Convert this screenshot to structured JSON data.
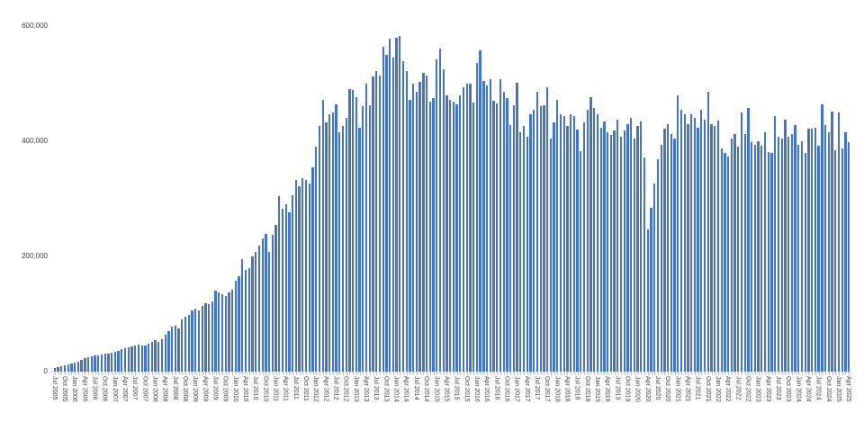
{
  "chart_data": {
    "type": "bar",
    "title": "",
    "frequency": "monthly",
    "start_month": "Jul 2005",
    "end_month": "Apr 2025",
    "bar_color": "#4472C4",
    "axis_text_color": "#404040",
    "axis_line_color": "#d9d9d9",
    "grid": false,
    "legend": "none",
    "y_axis": {
      "min": 0,
      "max": 600000,
      "tick_values": [
        0,
        200000,
        400000,
        600000
      ],
      "tick_labels": [
        "0",
        "200,000",
        "400,000",
        "600,000"
      ]
    },
    "x_axis": {
      "label_every_n_months": 3,
      "tick_labels": [
        "Jul 2005",
        "Oct 2005",
        "Jan 2006",
        "Apr 2006",
        "Jul 2006",
        "Oct 2006",
        "Jan 2007",
        "Apr 2007",
        "Jul 2007",
        "Oct 2007",
        "Jan 2008",
        "Apr 2008",
        "Jul 2008",
        "Oct 2008",
        "Jan 2009",
        "Apr 2009",
        "Jul 2009",
        "Oct 2009",
        "Jan 2010",
        "Apr 2010",
        "Jul 2010",
        "Oct 2010",
        "Jan 2011",
        "Apr 2011",
        "Jul 2011",
        "Oct 2011",
        "Jan 2012",
        "Apr 2012",
        "Jul 2012",
        "Oct 2012",
        "Jan 2013",
        "Apr 2013",
        "Jul 2013",
        "Oct 2013",
        "Jan 2014",
        "Apr 2014",
        "Jul 2014",
        "Oct 2014",
        "Jan 2015",
        "Apr 2015",
        "Jul 2015",
        "Oct 2015",
        "Jan 2016",
        "Apr 2016",
        "Jul 2016",
        "Oct 2016",
        "Jan 2017",
        "Apr 2017",
        "Jul 2017",
        "Oct 2017",
        "Jan 2018",
        "Apr 2018",
        "Jul 2018",
        "Oct 2018",
        "Jan 2019",
        "Apr 2019",
        "Jul 2019",
        "Oct 2019",
        "Jan 2020",
        "Apr 2020",
        "Jul 2020",
        "Oct 2020",
        "Jan 2021",
        "Apr 2021",
        "Jul 2021",
        "Oct 2021",
        "Jan 2022",
        "Apr 2022",
        "Jul 2022",
        "Oct 2022",
        "Jan 2023",
        "Apr 2023",
        "Jul 2023",
        "Oct 2023",
        "Jan 2024",
        "Apr 2024",
        "Jul 2024",
        "Oct 2024",
        "Jan 2025",
        "Apr 2025"
      ]
    },
    "values": [
      6000,
      8000,
      9000,
      11000,
      12000,
      14000,
      16000,
      17000,
      21000,
      23000,
      25000,
      27000,
      28000,
      28000,
      30000,
      31000,
      32000,
      33000,
      35000,
      36000,
      39000,
      41000,
      42000,
      44000,
      46000,
      47000,
      45000,
      46000,
      49000,
      51000,
      54000,
      52000,
      57000,
      64000,
      70000,
      78000,
      79000,
      75000,
      90000,
      95000,
      98000,
      106000,
      110000,
      106000,
      114000,
      119000,
      117000,
      122000,
      140000,
      137000,
      134000,
      132000,
      137000,
      142000,
      158000,
      166000,
      195000,
      176000,
      179000,
      200000,
      207000,
      218000,
      231000,
      239000,
      207000,
      238000,
      254000,
      304000,
      283000,
      290000,
      277000,
      306000,
      332000,
      321000,
      335000,
      332000,
      327000,
      355000,
      391000,
      426000,
      472000,
      433000,
      446000,
      449000,
      464000,
      415000,
      426000,
      441000,
      491000,
      488000,
      477000,
      423000,
      460000,
      499000,
      462000,
      512000,
      522000,
      514000,
      563000,
      550000,
      577000,
      545000,
      579000,
      582000,
      539000,
      522000,
      472000,
      499000,
      485000,
      503000,
      519000,
      514000,
      469000,
      475000,
      542000,
      561000,
      524000,
      480000,
      472000,
      469000,
      464000,
      480000,
      493000,
      500000,
      499000,
      467000,
      535000,
      558000,
      505000,
      497000,
      508000,
      470000,
      466000,
      508000,
      485000,
      475000,
      428000,
      462000,
      501000,
      415000,
      426000,
      407000,
      446000,
      454000,
      485000,
      460000,
      462000,
      493000,
      405000,
      433000,
      472000,
      446000,
      444000,
      426000,
      446000,
      444000,
      420000,
      382000,
      433000,
      455000,
      477000,
      457000,
      446000,
      423000,
      434000,
      415000,
      410000,
      418000,
      438000,
      407000,
      418000,
      430000,
      441000,
      405000,
      426000,
      434000,
      372000,
      246000,
      285000,
      327000,
      368000,
      394000,
      422000,
      430000,
      413000,
      405000,
      480000,
      454000,
      446000,
      430000,
      446000,
      441000,
      423000,
      454000,
      438000,
      485000,
      430000,
      426000,
      436000,
      387000,
      379000,
      374000,
      405000,
      413000,
      390000,
      449000,
      413000,
      457000,
      398000,
      394000,
      399000,
      392000,
      415000,
      381000,
      379000,
      444000,
      407000,
      405000,
      438000,
      407000,
      413000,
      428000,
      394000,
      399000,
      379000,
      421000,
      421000,
      423000,
      392000,
      464000,
      428000,
      415000,
      452000,
      384000,
      449000,
      387000,
      415000,
      398000
    ]
  }
}
